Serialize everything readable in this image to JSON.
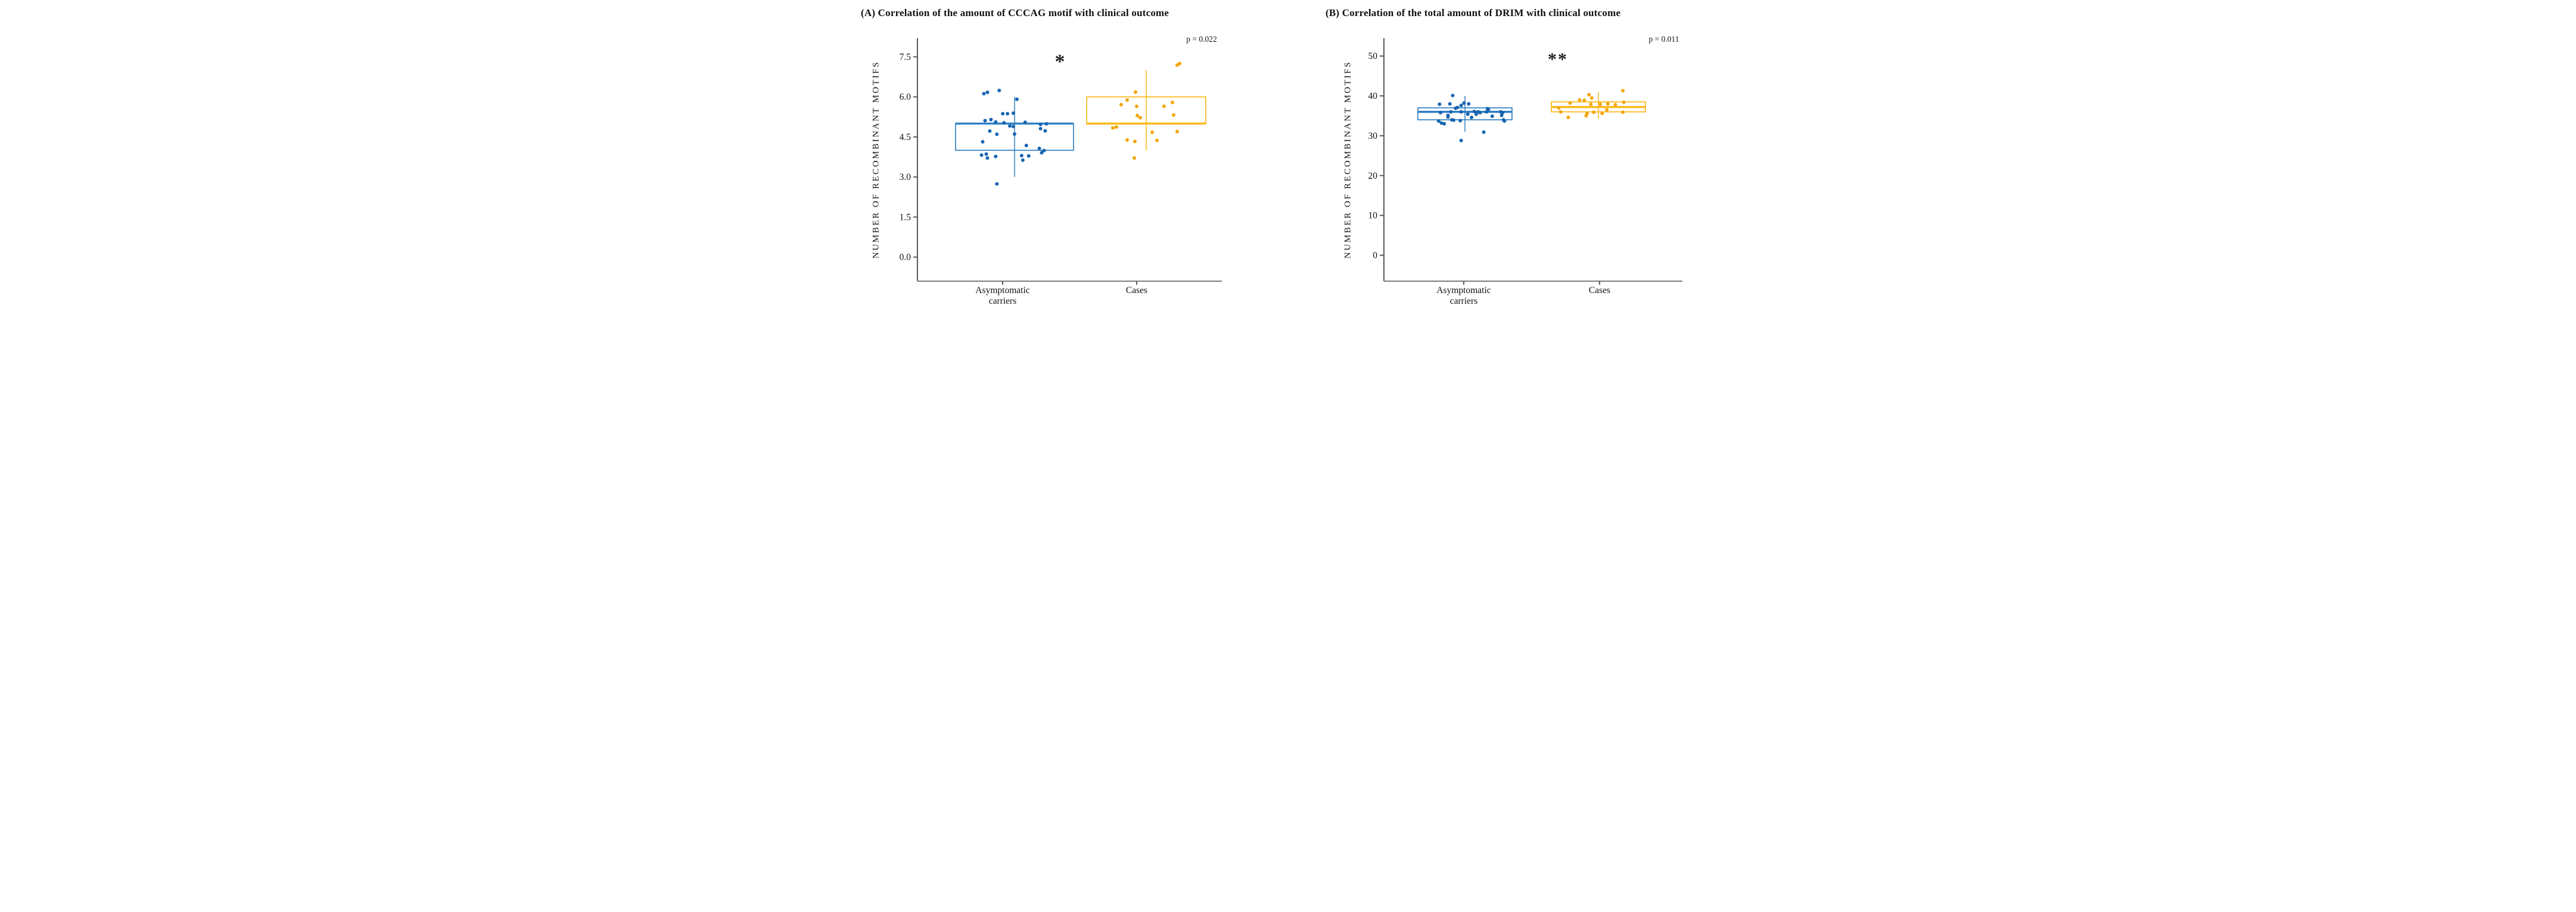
{
  "figure": {
    "background": "#ffffff",
    "text_color": "#111111",
    "axis_color": "#5a5a5a"
  },
  "chart_data": [
    {
      "type": "boxplot-jitter",
      "panel": "A",
      "title": "(A) Correlation of the amount of CCCAG motif with clinical outcome",
      "p_value": "p = 0.022",
      "significance": "*",
      "ylabel": "NUMBER OF RECOMBINANT MOTIFS",
      "xlabel": "",
      "categories": [
        "Asymptomatic carriers",
        "Cases"
      ],
      "ylim": [
        -0.9,
        8.2
      ],
      "yticks": [
        0.0,
        1.5,
        3.0,
        4.5,
        6.0,
        7.5
      ],
      "ytick_labels": [
        "0.0",
        "1.5",
        "3.0",
        "4.5",
        "6.0",
        "7.5"
      ],
      "grid": false,
      "legend": "none",
      "series": [
        {
          "name": "Asymptomatic carriers",
          "box_color": "#2F80C4",
          "point_color": "#1765B0",
          "box": {
            "q1": 4.0,
            "median": 5.0,
            "q3": 5.0,
            "whisker_low": 3.0,
            "whisker_high": 6.0,
            "median_position": "top-edge"
          },
          "points": [
            [
              -0.26,
              6.12
            ],
            [
              -0.23,
              6.17
            ],
            [
              -0.13,
              6.24
            ],
            [
              0.02,
              5.91
            ],
            [
              -0.1,
              5.37
            ],
            [
              -0.06,
              5.37
            ],
            [
              -0.01,
              5.39
            ],
            [
              -0.25,
              5.11
            ],
            [
              -0.2,
              5.15
            ],
            [
              -0.16,
              5.06
            ],
            [
              -0.09,
              5.03
            ],
            [
              -0.04,
              4.91
            ],
            [
              -0.01,
              4.89
            ],
            [
              0.09,
              5.05
            ],
            [
              0.22,
              4.97
            ],
            [
              0.27,
              4.99
            ],
            [
              0.22,
              4.81
            ],
            [
              0.26,
              4.73
            ],
            [
              -0.21,
              4.72
            ],
            [
              -0.15,
              4.6
            ],
            [
              0.0,
              4.61
            ],
            [
              -0.27,
              4.32
            ],
            [
              0.1,
              4.18
            ],
            [
              0.21,
              4.07
            ],
            [
              0.25,
              3.99
            ],
            [
              0.23,
              3.91
            ],
            [
              -0.28,
              3.82
            ],
            [
              -0.24,
              3.86
            ],
            [
              -0.23,
              3.71
            ],
            [
              -0.16,
              3.77
            ],
            [
              0.06,
              3.8
            ],
            [
              0.12,
              3.79
            ],
            [
              0.07,
              3.63
            ],
            [
              -0.15,
              2.74
            ]
          ]
        },
        {
          "name": "Cases",
          "box_color": "#FBB817",
          "point_color": "#F2A60C",
          "box": {
            "q1": 5.0,
            "median": 5.0,
            "q3": 6.0,
            "whisker_low": 4.0,
            "whisker_high": 7.0,
            "median_position": "bottom-edge"
          },
          "points": [
            [
              0.26,
              7.19
            ],
            [
              0.28,
              7.25
            ],
            [
              -0.09,
              6.18
            ],
            [
              -0.16,
              5.88
            ],
            [
              -0.21,
              5.71
            ],
            [
              -0.08,
              5.65
            ],
            [
              0.15,
              5.65
            ],
            [
              0.22,
              5.79
            ],
            [
              -0.075,
              5.3
            ],
            [
              -0.05,
              5.22
            ],
            [
              0.23,
              5.32
            ],
            [
              -0.28,
              4.84
            ],
            [
              -0.25,
              4.87
            ],
            [
              0.05,
              4.67
            ],
            [
              0.26,
              4.7
            ],
            [
              -0.16,
              4.39
            ],
            [
              -0.095,
              4.33
            ],
            [
              0.09,
              4.37
            ],
            [
              -0.1,
              3.71
            ]
          ]
        }
      ]
    },
    {
      "type": "boxplot-jitter",
      "panel": "B",
      "title": "(B) Correlation of the total amount of DRIM with clinical outcome",
      "p_value": "p = 0.011",
      "significance": "**",
      "ylabel": "NUMBER OF RECOMBINANT MOTIFS",
      "xlabel": "",
      "categories": [
        "Asymptomatic carriers",
        "Cases"
      ],
      "ylim": [
        -6.5,
        54.5
      ],
      "yticks": [
        0,
        10,
        20,
        30,
        40,
        50
      ],
      "ytick_labels": [
        "0",
        "10",
        "20",
        "30",
        "40",
        "50"
      ],
      "grid": false,
      "legend": "none",
      "series": [
        {
          "name": "Asymptomatic carriers",
          "box_color": "#2F80C4",
          "point_color": "#1765B0",
          "box": {
            "q1": 34.0,
            "median": 36.0,
            "q3": 37.0,
            "whisker_low": 31.0,
            "whisker_high": 40.0,
            "median_position": "inside"
          },
          "points": [
            [
              -0.13,
              40.1
            ],
            [
              -0.27,
              37.9
            ],
            [
              -0.16,
              38.0
            ],
            [
              -0.01,
              38.2
            ],
            [
              0.04,
              38.0
            ],
            [
              -0.04,
              37.6
            ],
            [
              -0.1,
              36.9
            ],
            [
              -0.08,
              37.1
            ],
            [
              -0.26,
              35.8
            ],
            [
              -0.15,
              36.0
            ],
            [
              -0.04,
              36.0
            ],
            [
              0.1,
              36.1
            ],
            [
              0.12,
              35.4
            ],
            [
              0.14,
              36.0
            ],
            [
              0.16,
              35.8
            ],
            [
              0.24,
              36.8
            ],
            [
              0.25,
              36.6
            ],
            [
              0.23,
              36.0
            ],
            [
              0.29,
              34.9
            ],
            [
              0.38,
              36.0
            ],
            [
              0.4,
              35.8
            ],
            [
              0.39,
              35.1
            ],
            [
              0.03,
              35.4
            ],
            [
              0.07,
              34.6
            ],
            [
              -0.18,
              35.1
            ],
            [
              -0.18,
              34.7
            ],
            [
              -0.14,
              34.0
            ],
            [
              -0.12,
              33.9
            ],
            [
              -0.05,
              33.8
            ],
            [
              -0.28,
              33.7
            ],
            [
              -0.25,
              33.2
            ],
            [
              -0.22,
              33.0
            ],
            [
              0.41,
              34.0
            ],
            [
              0.42,
              33.7
            ],
            [
              0.2,
              30.9
            ],
            [
              -0.04,
              28.8
            ]
          ]
        },
        {
          "name": "Cases",
          "box_color": "#FBB817",
          "point_color": "#F2A60C",
          "box": {
            "q1": 36.0,
            "median": 37.2,
            "q3": 38.5,
            "whisker_low": 34.3,
            "whisker_high": 41.0,
            "median_position": "inside"
          },
          "points": [
            [
              0.26,
              41.3
            ],
            [
              -0.1,
              40.3
            ],
            [
              -0.07,
              39.5
            ],
            [
              -0.2,
              39.0
            ],
            [
              -0.15,
              38.9
            ],
            [
              0.27,
              38.4
            ],
            [
              -0.3,
              38.2
            ],
            [
              0.1,
              38.0
            ],
            [
              -0.08,
              37.9
            ],
            [
              0.02,
              37.9
            ],
            [
              0.18,
              37.8
            ],
            [
              -0.42,
              37.0
            ],
            [
              0.09,
              36.5
            ],
            [
              -0.4,
              36.0
            ],
            [
              0.26,
              35.9
            ],
            [
              -0.05,
              35.9
            ],
            [
              -0.12,
              35.6
            ],
            [
              0.04,
              35.6
            ],
            [
              -0.13,
              35.0
            ],
            [
              -0.32,
              34.6
            ]
          ]
        }
      ]
    }
  ]
}
